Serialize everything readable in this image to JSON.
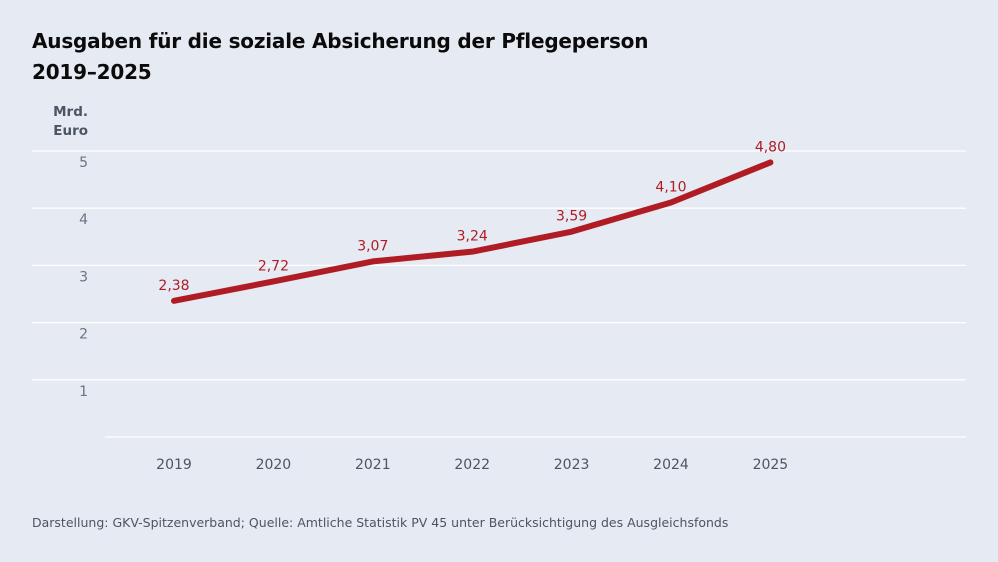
{
  "title": {
    "line1": "Ausgaben für die soziale Absicherung der Pflegeperson",
    "line2": "2019–2025"
  },
  "unit": {
    "line1": "Mrd.",
    "line2": "Euro"
  },
  "source": "Darstellung: GKV-Spitzenverband; Quelle: Amtliche Statistik PV 45 unter Berücksichtigung des Ausgleichsfonds",
  "colors": {
    "line": "#b01c24",
    "label": "#b01c24",
    "grid": "#ffffff",
    "axis_text": "#6b7480"
  },
  "chart_data": {
    "type": "line",
    "title": "Ausgaben für die soziale Absicherung der Pflegeperson 2019–2025",
    "ylabel": "Mrd. Euro",
    "xlabel": "",
    "categories": [
      "2019",
      "2020",
      "2021",
      "2022",
      "2023",
      "2024",
      "2025"
    ],
    "values": [
      2.38,
      2.72,
      3.07,
      3.24,
      3.59,
      4.1,
      4.8
    ],
    "data_labels": [
      "2,38",
      "2,72",
      "3,07",
      "3,24",
      "3,59",
      "4,10",
      "4,80"
    ],
    "yticks": [
      1,
      2,
      3,
      4,
      5
    ],
    "ylim": [
      0,
      5
    ],
    "grid": true,
    "legend": "none"
  }
}
